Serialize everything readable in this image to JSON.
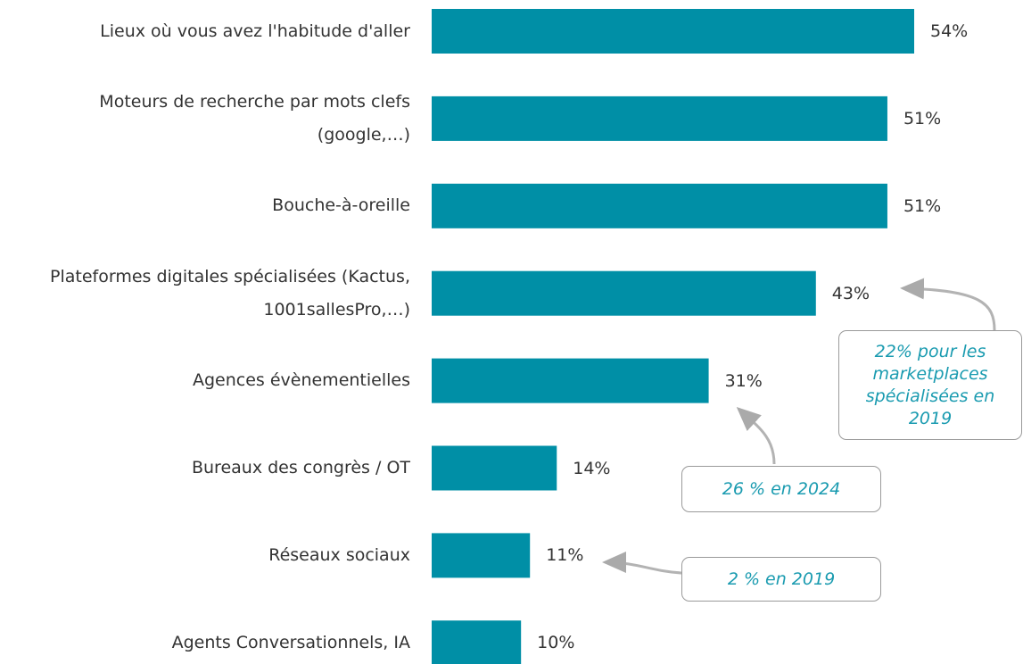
{
  "chart_data": {
    "type": "hbar",
    "categories": [
      "Lieux où vous avez l'habitude d'aller",
      "Moteurs de recherche par mots clefs (google,…)",
      "Bouche-à-oreille",
      "Plateformes digitales spécialisées (Kactus, 1001sallesPro,…)",
      "Agences évènementielles",
      "Bureaux des congrès / OT",
      "Réseaux sociaux",
      "Agents Conversationnels,  IA"
    ],
    "values": [
      54,
      51,
      51,
      43,
      31,
      14,
      11,
      10
    ],
    "value_labels": [
      "54%",
      "51%",
      "51%",
      "43%",
      "31%",
      "14%",
      "11%",
      "10%"
    ],
    "color": "#008fa6",
    "annotations": [
      "22% pour les marketplaces spécialisées en 2019",
      "26 % en 2024",
      "2 % en 2019"
    ]
  }
}
